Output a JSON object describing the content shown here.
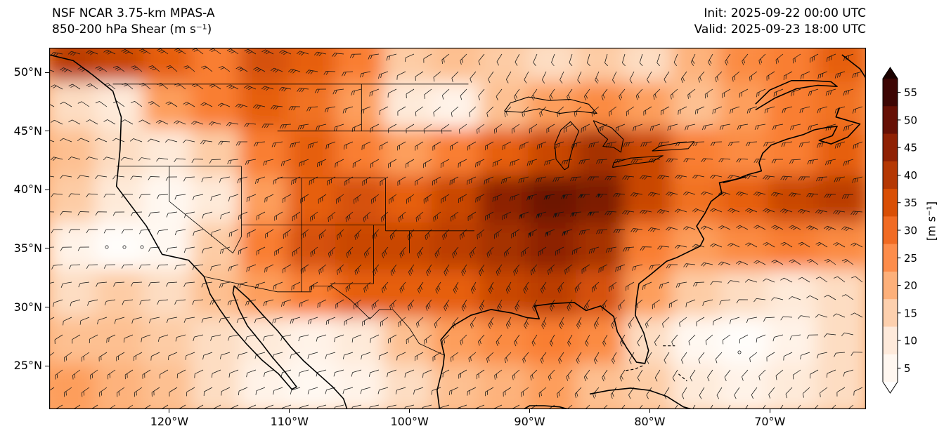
{
  "header": {
    "model": "NSF NCAR 3.75-km MPAS-A",
    "product": "850-200 hPa Shear (m s⁻¹)",
    "init": "Init: 2025-09-22 00:00 UTC",
    "valid": "Valid: 2025-09-23 18:00 UTC"
  },
  "axes": {
    "y_tick_labels": [
      "50°N",
      "45°N",
      "40°N",
      "35°N",
      "30°N",
      "25°N"
    ],
    "x_tick_labels": [
      "120°W",
      "110°W",
      "100°W",
      "90°W",
      "80°W",
      "70°W"
    ]
  },
  "colorbar": {
    "label": "[m s⁻¹]",
    "tick_values": [
      55,
      50,
      45,
      40,
      35,
      30,
      25,
      20,
      15,
      10,
      5
    ],
    "cell_colors_high_to_low": [
      "#3d0604",
      "#661005",
      "#8f2104",
      "#b53804",
      "#d94f05",
      "#f16b23",
      "#fd8d4b",
      "#fdb07a",
      "#fdd0ae",
      "#feeadb",
      "#fff7f0"
    ],
    "over_color": "#1c0201",
    "under_color": "#ffffff"
  },
  "chart_data": {
    "type": "heatmap",
    "title": "850-200 hPa Shear (m s⁻¹)",
    "model": "NSF NCAR 3.75-km MPAS-A",
    "init_time": "2025-09-22 00:00 UTC",
    "valid_time": "2025-09-23 18:00 UTC",
    "units": "m s⁻¹",
    "overlay": "wind barbs of 850-200 hPa shear vector; open circles where nearly calm",
    "colorbar_ticks": [
      5,
      10,
      15,
      20,
      25,
      30,
      35,
      40,
      45,
      50,
      55
    ],
    "colorbar_extend": "both",
    "lon_range": [
      -130,
      -62
    ],
    "lat_range": [
      21.3,
      52.1
    ],
    "x_tick_lons": [
      -120,
      -110,
      -100,
      -90,
      -80,
      -70
    ],
    "y_tick_lats": [
      50,
      45,
      40,
      35,
      30,
      25
    ],
    "grid_lats": [
      51,
      47,
      43,
      39,
      35,
      31,
      27,
      23
    ],
    "grid_lons": [
      -128,
      -124,
      -120,
      -116,
      -112,
      -108,
      -104,
      -100,
      -96,
      -92,
      -88,
      -84,
      -80,
      -76,
      -72,
      -68,
      -64
    ],
    "shear_values": [
      [
        42,
        40,
        35,
        30,
        38,
        35,
        30,
        18,
        20,
        18,
        15,
        18,
        15,
        22,
        28,
        30,
        35
      ],
      [
        15,
        12,
        25,
        30,
        35,
        32,
        25,
        12,
        10,
        20,
        25,
        28,
        25,
        20,
        25,
        30,
        32
      ],
      [
        20,
        15,
        12,
        18,
        30,
        35,
        30,
        25,
        30,
        35,
        40,
        45,
        40,
        30,
        28,
        30,
        35
      ],
      [
        18,
        12,
        8,
        12,
        25,
        35,
        38,
        35,
        40,
        48,
        52,
        50,
        40,
        32,
        35,
        40,
        42
      ],
      [
        10,
        6,
        8,
        18,
        30,
        38,
        40,
        40,
        42,
        45,
        48,
        45,
        30,
        25,
        28,
        30,
        28
      ],
      [
        15,
        18,
        15,
        20,
        25,
        30,
        35,
        35,
        35,
        40,
        42,
        38,
        25,
        18,
        15,
        12,
        15
      ],
      [
        20,
        20,
        18,
        15,
        12,
        10,
        12,
        20,
        25,
        28,
        30,
        28,
        15,
        8,
        6,
        10,
        15
      ],
      [
        25,
        22,
        20,
        15,
        10,
        8,
        10,
        15,
        20,
        22,
        25,
        20,
        18,
        12,
        10,
        12,
        15
      ]
    ]
  }
}
